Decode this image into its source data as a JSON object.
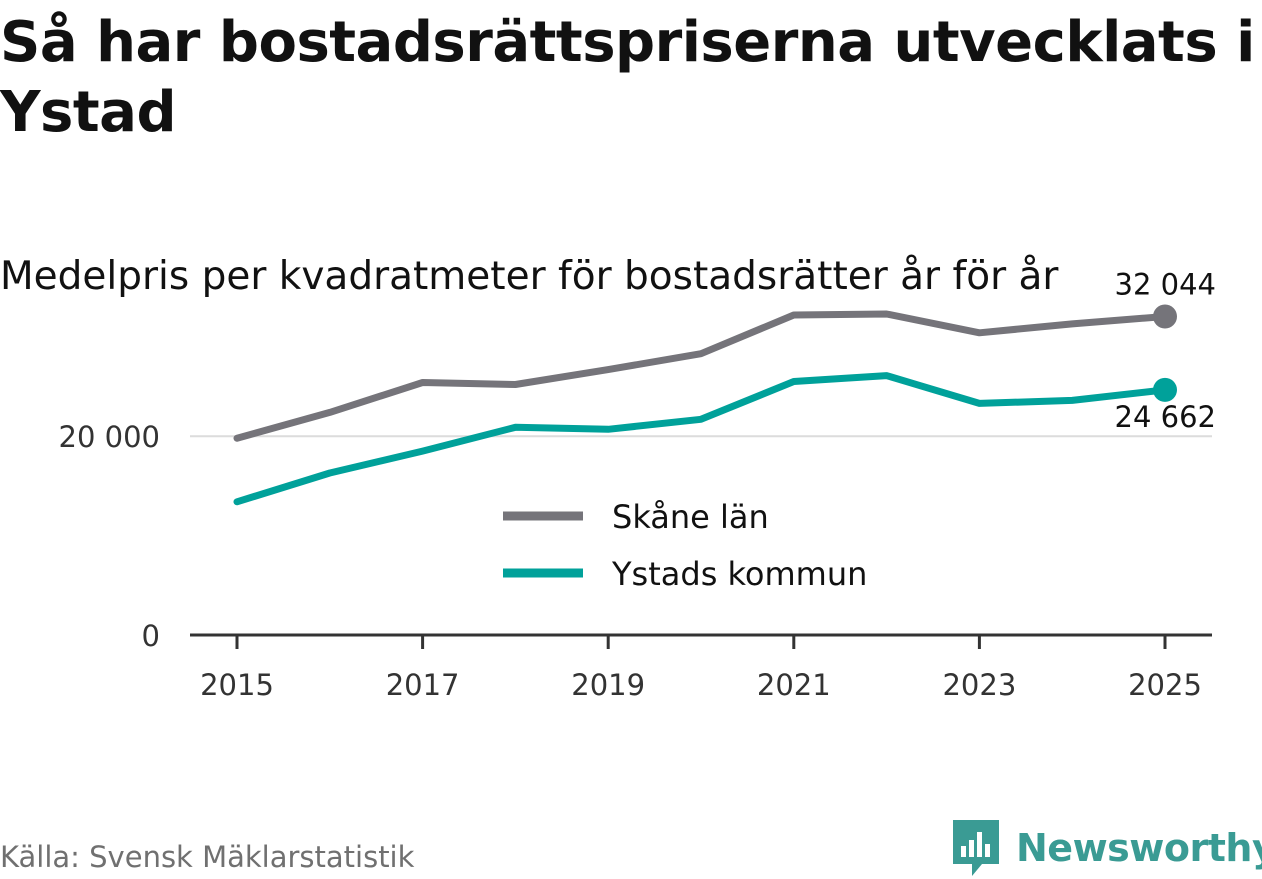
{
  "title": "Så har bostadsrättspriserna utvecklats i Ystad",
  "subtitle": "Medelpris per kvadratmeter för bostadsrätter år för år",
  "source": "Källa: Svensk Mäklarstatistik",
  "brand": {
    "name": "Newsworthy",
    "color": "#3a9b94"
  },
  "chart_data": {
    "type": "line",
    "title": "Medelpris per kvadratmeter för bostadsrätter år för år",
    "xlabel": "",
    "ylabel": "",
    "x": [
      2015,
      2016,
      2017,
      2018,
      2019,
      2020,
      2021,
      2022,
      2023,
      2024,
      2025
    ],
    "x_ticks": [
      "2015",
      "2017",
      "2019",
      "2021",
      "2023",
      "2025"
    ],
    "y_ticks": [
      {
        "value": 0,
        "label": "0"
      },
      {
        "value": 20000,
        "label": "20 000"
      }
    ],
    "ylim": [
      0,
      33000
    ],
    "grid": true,
    "legend_position": "center",
    "series": [
      {
        "name": "Skåne län",
        "color": "#75747a",
        "values": [
          19800,
          22400,
          25400,
          25200,
          26700,
          28300,
          32200,
          32300,
          30400,
          31300,
          32044
        ],
        "end_label": "32 044"
      },
      {
        "name": "Ystads kommun",
        "color": "#00a19a",
        "values": [
          13400,
          16300,
          18500,
          20900,
          20700,
          21700,
          25500,
          26100,
          23300,
          23600,
          24662
        ],
        "end_label": "24 662"
      }
    ]
  }
}
